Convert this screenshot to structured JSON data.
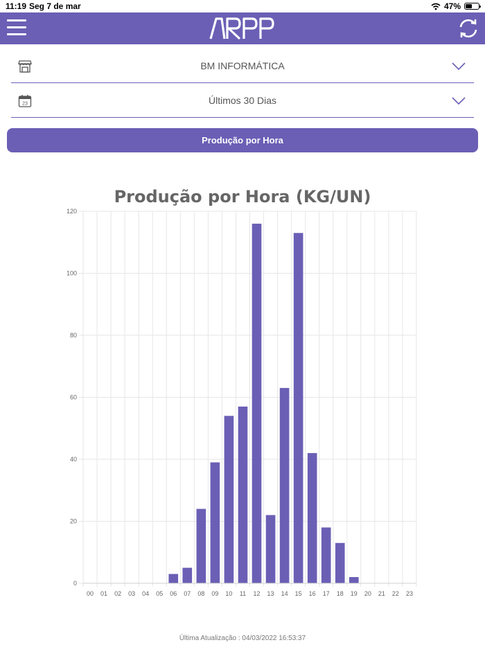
{
  "status_bar": {
    "time": "11:19",
    "date": "Seg 7 de mar",
    "battery": "47%",
    "battery_level": 0.47
  },
  "header": {
    "logo_text": "ARPP",
    "menu_icon": "hamburger-icon",
    "refresh_icon": "refresh-icon",
    "color": "#6a5fb5"
  },
  "filters": {
    "company": {
      "label": "BM INFORMÁTICA",
      "icon": "store-icon"
    },
    "period": {
      "label": "Últimos 30 Dias",
      "icon": "calendar-icon",
      "icon_text": "23"
    }
  },
  "report_button": {
    "label": "Produção por Hora"
  },
  "chart_data": {
    "type": "bar",
    "title": "Produção por Hora (KG/UN)",
    "categories": [
      "00",
      "01",
      "02",
      "03",
      "04",
      "05",
      "06",
      "07",
      "08",
      "09",
      "10",
      "11",
      "12",
      "13",
      "14",
      "15",
      "16",
      "17",
      "18",
      "19",
      "20",
      "21",
      "22",
      "23"
    ],
    "values": [
      0,
      0,
      0,
      0,
      0,
      0,
      3,
      5,
      24,
      39,
      54,
      57,
      116,
      22,
      63,
      113,
      42,
      18,
      13,
      2,
      0,
      0,
      0,
      0
    ],
    "ylim": [
      0,
      120
    ],
    "yticks": [
      "0",
      "20",
      "40",
      "60",
      "80",
      "100",
      "120"
    ],
    "bar_color": "#6a5fb5",
    "grid": true,
    "xlabel": "",
    "ylabel": ""
  },
  "footer": {
    "last_update": "Última Atualização : 04/03/2022 16:53:37"
  }
}
